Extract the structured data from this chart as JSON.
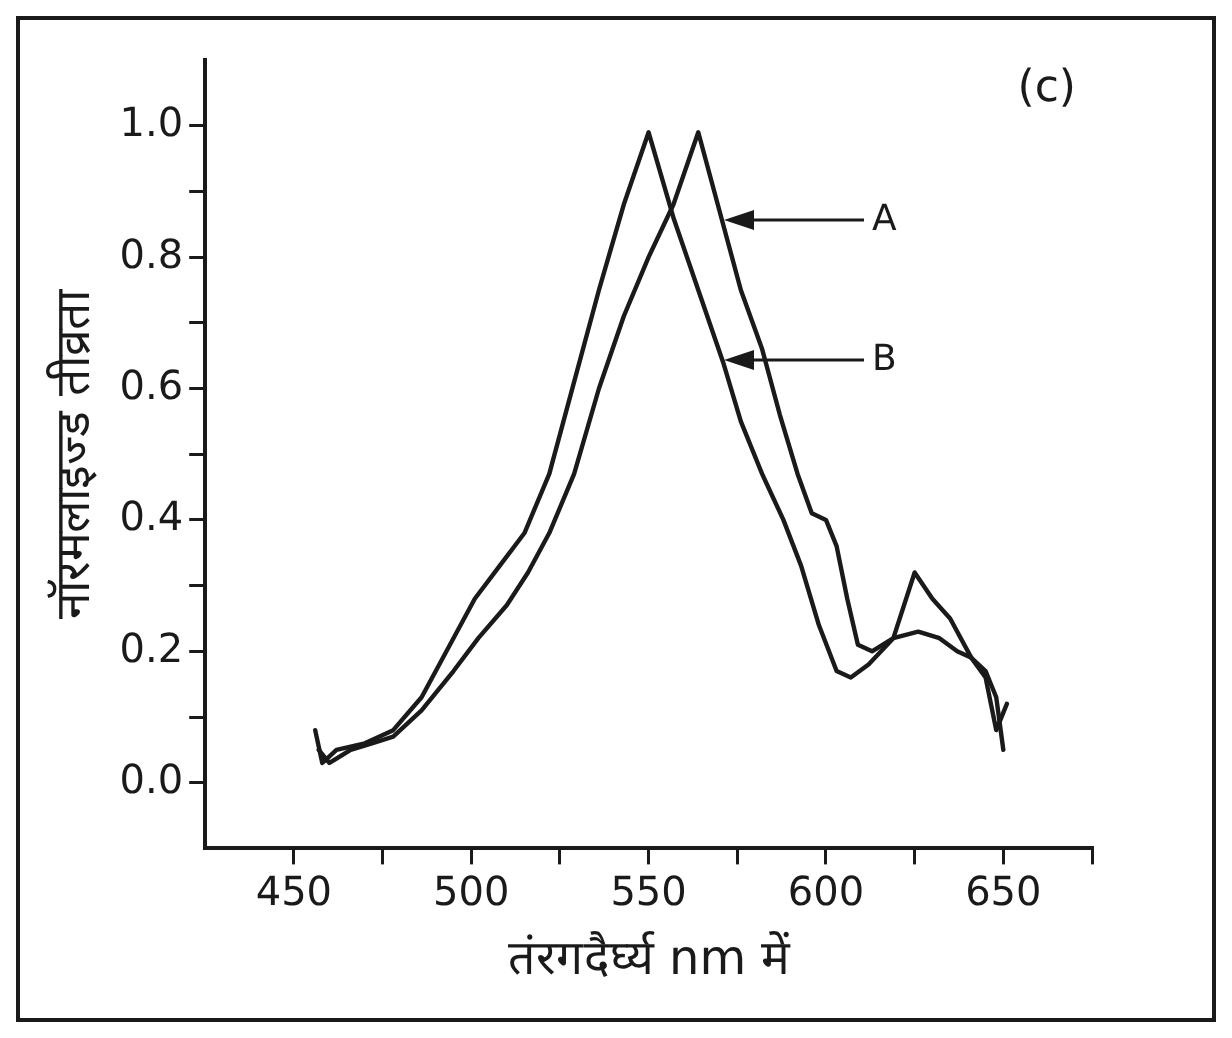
{
  "chart_data": {
    "type": "line",
    "title": "(c)",
    "xlabel": "तंरगदैर्घ्य nm में",
    "ylabel": "नॉरमलाइज्ड तीव्रता",
    "xlim": [
      425,
      675
    ],
    "xticks": [
      450,
      {
        "value": 475,
        "label": null
      },
      500,
      {
        "value": 525,
        "label": null
      },
      550,
      {
        "value": 575,
        "label": null
      },
      600,
      {
        "value": 625,
        "label": null
      },
      650,
      {
        "value": 675,
        "label": null
      }
    ],
    "ylim": [
      -0.1,
      1.1
    ],
    "yticks": [
      {
        "value": 0,
        "label": "0.0"
      },
      {
        "value": 0.1,
        "label": null
      },
      0.2,
      {
        "value": 0.3,
        "label": null
      },
      0.4,
      {
        "value": 0.5,
        "label": null
      },
      0.6,
      {
        "value": 0.7,
        "label": null
      },
      0.8,
      {
        "value": 0.9,
        "label": null
      },
      {
        "value": 1,
        "label": "1.0"
      }
    ],
    "grid": false,
    "legend": false,
    "marker": "none",
    "line_style": "solid",
    "series": [
      {
        "color": "#1a1a1a",
        "x": [
          457,
          460,
          466,
          472,
          478,
          486,
          495,
          502,
          510,
          516,
          522,
          529,
          536,
          543,
          550,
          557,
          564,
          571,
          576,
          582,
          587,
          592,
          596,
          600,
          603,
          606,
          609,
          613,
          619,
          625,
          630,
          635,
          641,
          645,
          648,
          650
        ],
        "values": [
          0.05,
          0.03,
          0.05,
          0.06,
          0.07,
          0.11,
          0.17,
          0.22,
          0.27,
          0.32,
          0.38,
          0.47,
          0.6,
          0.71,
          0.8,
          0.88,
          0.99,
          0.85,
          0.75,
          0.66,
          0.56,
          0.47,
          0.41,
          0.4,
          0.36,
          0.28,
          0.21,
          0.2,
          0.22,
          0.32,
          0.28,
          0.25,
          0.19,
          0.17,
          0.13,
          0.05
        ]
      },
      {
        "color": "#1a1a1a",
        "x": [
          456,
          458,
          462,
          470,
          478,
          486,
          494,
          501,
          508,
          515,
          522,
          529,
          536,
          543,
          550,
          557,
          564,
          571,
          576,
          582,
          588,
          593,
          598,
          603,
          607,
          612,
          619,
          626,
          632,
          637,
          641,
          645,
          648,
          651
        ],
        "values": [
          0.08,
          0.03,
          0.05,
          0.06,
          0.08,
          0.13,
          0.21,
          0.28,
          0.33,
          0.38,
          0.47,
          0.61,
          0.75,
          0.88,
          0.99,
          0.86,
          0.75,
          0.64,
          0.55,
          0.47,
          0.4,
          0.33,
          0.24,
          0.17,
          0.16,
          0.18,
          0.22,
          0.23,
          0.22,
          0.2,
          0.19,
          0.16,
          0.08,
          0.12
        ]
      }
    ],
    "annotations": [
      "A",
      "B"
    ]
  }
}
